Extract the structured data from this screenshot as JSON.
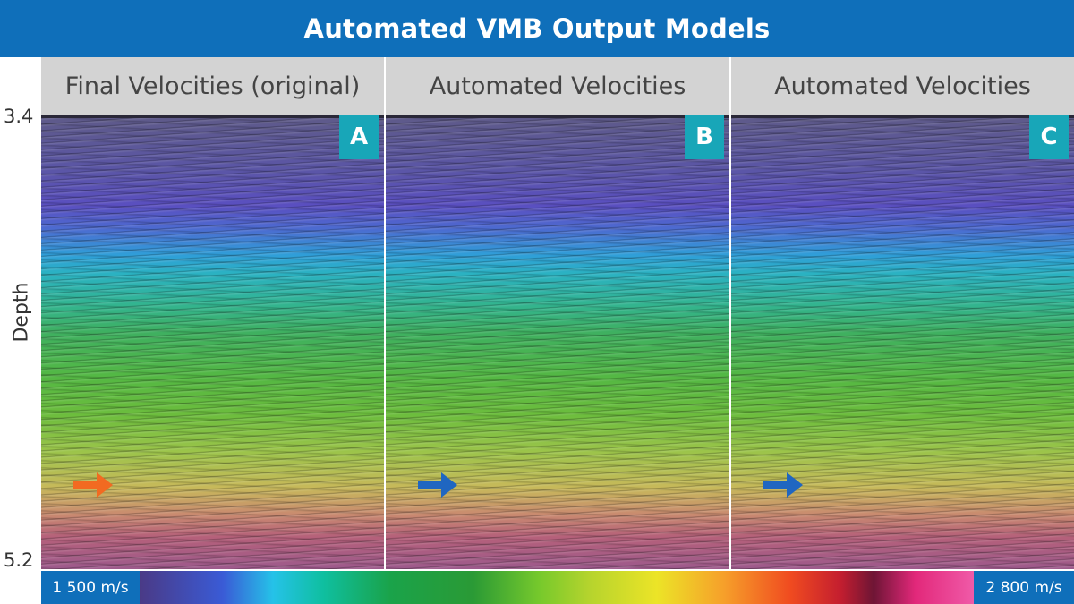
{
  "header": {
    "title": "Automated VMB Output Models"
  },
  "axis": {
    "top_value": "3.4",
    "bottom_value": "5.2",
    "title": "Depth"
  },
  "panels": [
    {
      "title": "Final Velocities (original)",
      "label": "A",
      "arrow_color": "#f26a21"
    },
    {
      "title": "Automated Velocities",
      "label": "B",
      "arrow_color": "#1f66c1"
    },
    {
      "title": "Automated Velocities",
      "label": "C",
      "arrow_color": "#1f66c1"
    }
  ],
  "scale": {
    "min_label": "1 500 m/s",
    "max_label": "2 800 m/s"
  },
  "colors": {
    "header_blue": "#0f6fba",
    "label_teal": "#18a6b8"
  }
}
